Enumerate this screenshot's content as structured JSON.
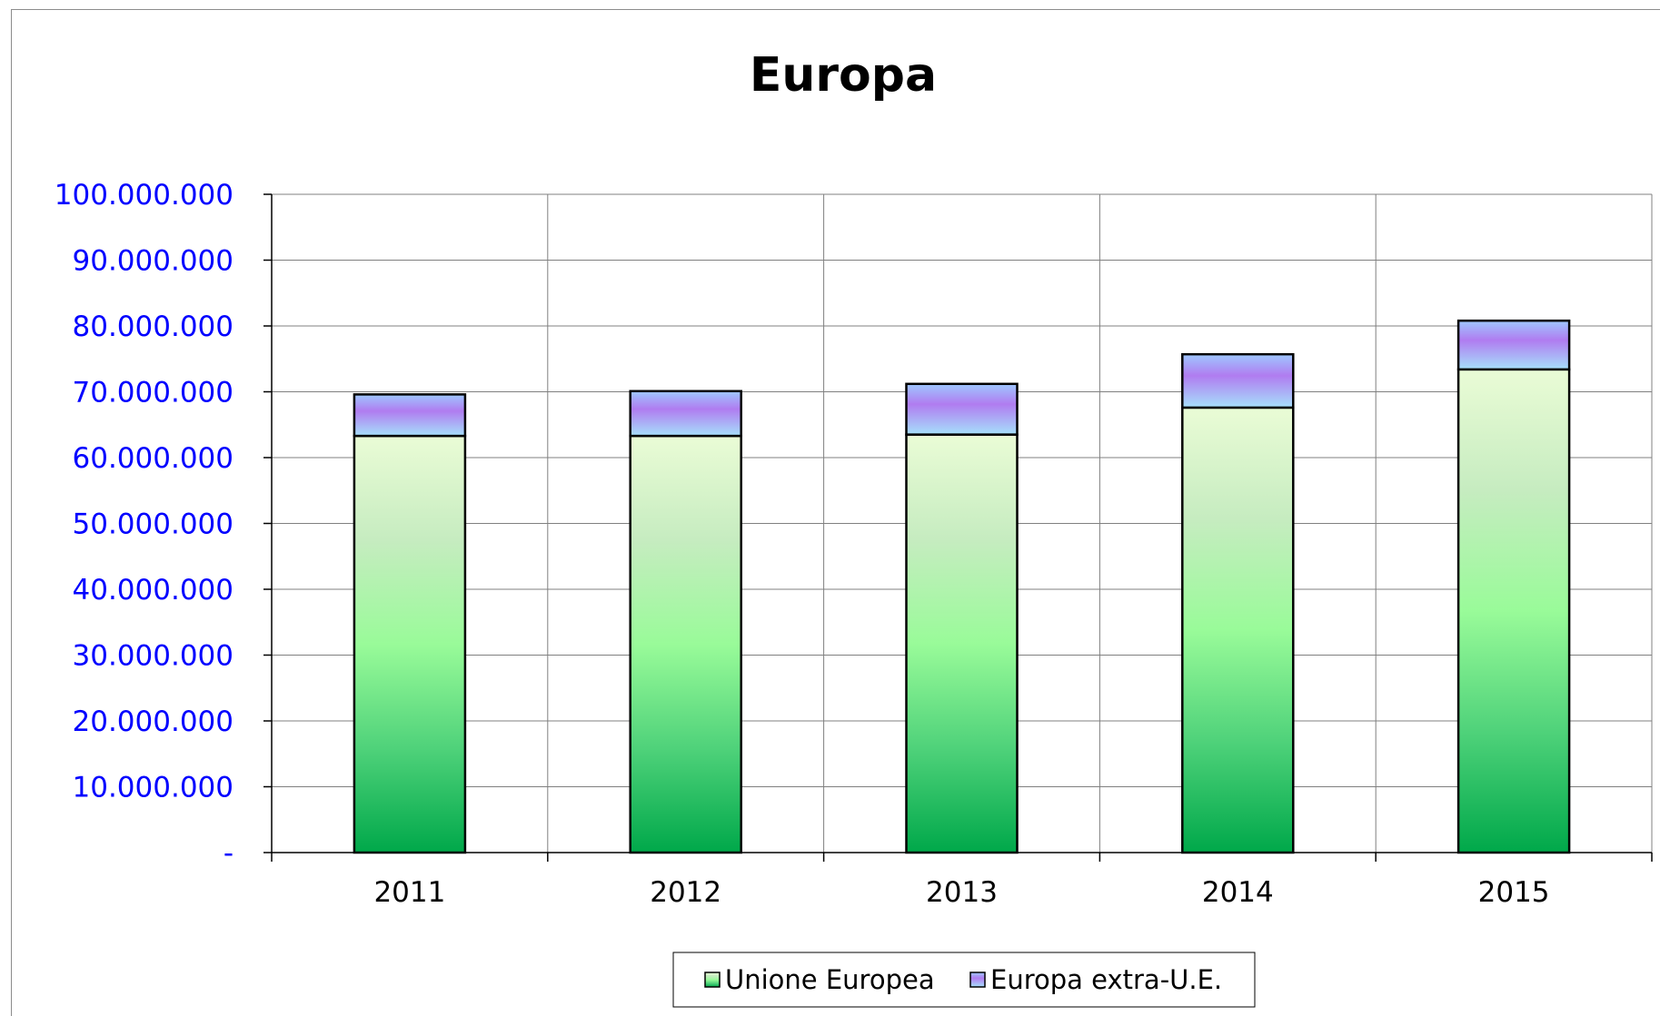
{
  "chart_data": {
    "type": "bar",
    "stacked": true,
    "title": "Europa",
    "xlabel": "",
    "ylabel": "",
    "categories": [
      "2011",
      "2012",
      "2013",
      "2014",
      "2015"
    ],
    "series": [
      {
        "name": "Unione Europea",
        "values": [
          63300000,
          63300000,
          63500000,
          67600000,
          73400000
        ]
      },
      {
        "name": "Europa extra-U.E.",
        "values": [
          6300000,
          6800000,
          7700000,
          8100000,
          7400000
        ]
      }
    ],
    "ylim": [
      0,
      100000000
    ],
    "yticks": [
      0,
      10000000,
      20000000,
      30000000,
      40000000,
      50000000,
      60000000,
      70000000,
      80000000,
      90000000,
      100000000
    ],
    "ytick_labels": [
      "-",
      "10.000.000",
      "20.000.000",
      "30.000.000",
      "40.000.000",
      "50.000.000",
      "60.000.000",
      "70.000.000",
      "80.000.000",
      "90.000.000",
      "100.000.000"
    ],
    "grid": true,
    "legend_position": "bottom",
    "colors": {
      "series_1_top": "#eafcd6",
      "series_1_mid": "#99fb99",
      "series_1_bottom": "#00a84a",
      "series_2_top": "#9ec8ff",
      "series_2_mid": "#b07cf0",
      "series_2_bottom": "#a6e0fb",
      "tick_label": "#0000ff",
      "grid": "#808080"
    }
  }
}
